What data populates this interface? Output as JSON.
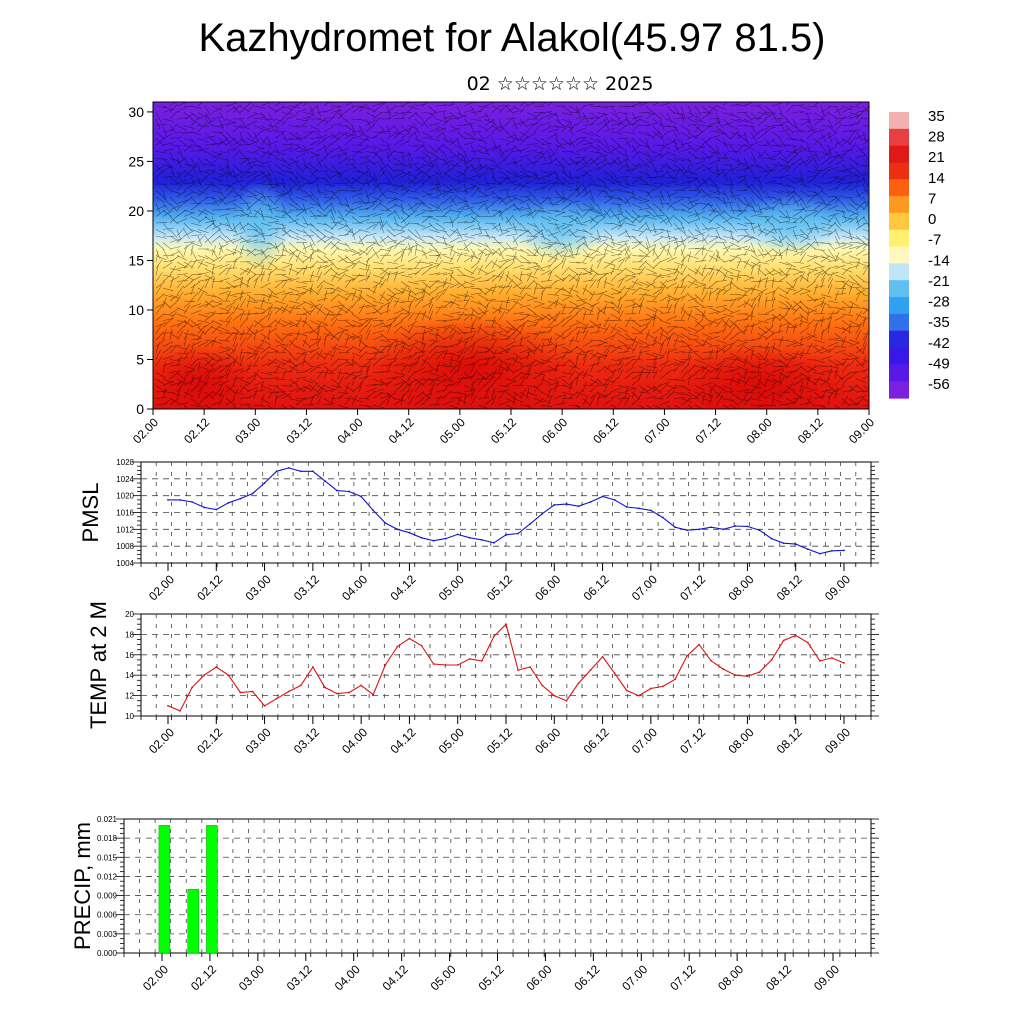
{
  "title": "Kazhydromet for Alakol(45.97 81.5)",
  "subtitle": "02 ☆☆☆☆☆☆ 2025",
  "colors": {
    "pmsl": "#1515cc",
    "temp": "#dd1111",
    "precip": "#00ff00"
  },
  "chart_data": [
    {
      "type": "heatmap",
      "title": "",
      "y_ticks": [
        "0",
        "5",
        "10",
        "15",
        "20",
        "25",
        "30"
      ],
      "ylim": [
        0,
        31
      ],
      "x_ticks": [
        "02.00",
        "02.12",
        "03.00",
        "03.12",
        "04.00",
        "04.12",
        "05.00",
        "05.12",
        "06.00",
        "06.12",
        "07.00",
        "07.12",
        "08.00",
        "08.12",
        "09.00"
      ],
      "colorbar": [
        "35",
        "28",
        "21",
        "14",
        "7",
        "0",
        "-7",
        "-14",
        "-21",
        "-28",
        "-35",
        "-42",
        "-49",
        "-56"
      ],
      "overlay": "wind vectors"
    },
    {
      "type": "line",
      "ylabel": "PMSL",
      "y_ticks": [
        "1004",
        "1008",
        "1012",
        "1016",
        "1020",
        "1024",
        "1028"
      ],
      "ylim": [
        1004,
        1028
      ],
      "x_ticks": [
        "02.00",
        "02.12",
        "03.00",
        "03.12",
        "04.00",
        "04.12",
        "05.00",
        "05.12",
        "06.00",
        "06.12",
        "07.00",
        "07.12",
        "08.00",
        "08.12",
        "09.00"
      ],
      "x": [
        0,
        3,
        6,
        9,
        12,
        15,
        18,
        21,
        24,
        27,
        30,
        33,
        36,
        39,
        42,
        45,
        48,
        51,
        54,
        57,
        60,
        63,
        66,
        69,
        72,
        75,
        78,
        81,
        84,
        87,
        90,
        93,
        96,
        99,
        102,
        105,
        108,
        111,
        114,
        117,
        120,
        123,
        126,
        129,
        132,
        135,
        138,
        141,
        144,
        147,
        150,
        153,
        156,
        159,
        162,
        165,
        168
      ],
      "series": [
        {
          "values": [
            1019,
            1019,
            1018.5,
            1017.2,
            1016.7,
            1018.3,
            1019.3,
            1020.5,
            1023,
            1025.8,
            1026.6,
            1025.8,
            1025.8,
            1023.5,
            1021.2,
            1021,
            1019.8,
            1016.5,
            1013.5,
            1012,
            1011.2,
            1010,
            1009.3,
            1009.8,
            1010.8,
            1010,
            1009.5,
            1008.8,
            1010.7,
            1011,
            1013.3,
            1015.7,
            1017.8,
            1018,
            1017.5,
            1018.5,
            1019.8,
            1019,
            1017.3,
            1017,
            1016.5,
            1014.8,
            1012.5,
            1011.8,
            1012,
            1012.5,
            1012,
            1012.8,
            1012.7,
            1011.8,
            1009.8,
            1008.7,
            1008.5,
            1007.3,
            1006.2,
            1006.9,
            1007
          ]
        }
      ]
    },
    {
      "type": "line",
      "ylabel": "TEMP at 2 M",
      "y_ticks": [
        "10",
        "12",
        "14",
        "16",
        "18",
        "20"
      ],
      "ylim": [
        10,
        20
      ],
      "x_ticks": [
        "02.00",
        "02.12",
        "03.00",
        "03.12",
        "04.00",
        "04.12",
        "05.00",
        "05.12",
        "06.00",
        "06.12",
        "07.00",
        "07.12",
        "08.00",
        "08.12",
        "09.00"
      ],
      "x": [
        0,
        3,
        6,
        9,
        12,
        15,
        18,
        21,
        24,
        27,
        30,
        33,
        36,
        39,
        42,
        45,
        48,
        51,
        54,
        57,
        60,
        63,
        66,
        69,
        72,
        75,
        78,
        81,
        84,
        87,
        90,
        93,
        96,
        99,
        102,
        105,
        108,
        111,
        114,
        117,
        120,
        123,
        126,
        129,
        132,
        135,
        138,
        141,
        144,
        147,
        150,
        153,
        156,
        159,
        162,
        165,
        168
      ],
      "series": [
        {
          "values": [
            11,
            10.5,
            12.8,
            14,
            14.8,
            14,
            12.3,
            12.4,
            11,
            11.7,
            12.4,
            13,
            14.8,
            12.8,
            12.2,
            12.3,
            13,
            12.1,
            15,
            16.8,
            17.6,
            16.9,
            15.1,
            15.0,
            15.0,
            15.6,
            15.4,
            17.8,
            19,
            14.5,
            14.8,
            13,
            12,
            11.5,
            13.2,
            14.5,
            15.8,
            14.2,
            12.5,
            12,
            12.7,
            12.9,
            13.6,
            15.9,
            17,
            15.4,
            14.6,
            14,
            13.9,
            14.3,
            15.5,
            17.4,
            17.9,
            17.2,
            15.4,
            15.7,
            15.2
          ]
        }
      ]
    },
    {
      "type": "bar",
      "ylabel": "PRECIP, mm",
      "y_ticks": [
        "0.000",
        "0.003",
        "0.006",
        "0.009",
        "0.012",
        "0.015",
        "0.018",
        "0.021"
      ],
      "ylim": [
        0,
        0.021
      ],
      "x_ticks": [
        "02.00",
        "02.12",
        "03.00",
        "03.12",
        "04.00",
        "04.12",
        "05.00",
        "05.12",
        "06.00",
        "06.12",
        "07.00",
        "07.12",
        "08.00",
        "08.12",
        "09.00"
      ],
      "bars": [
        {
          "x": 0.6,
          "value": 0.02
        },
        {
          "x": 7.8,
          "value": 0.01
        },
        {
          "x": 12.5,
          "value": 0.02
        }
      ]
    }
  ]
}
